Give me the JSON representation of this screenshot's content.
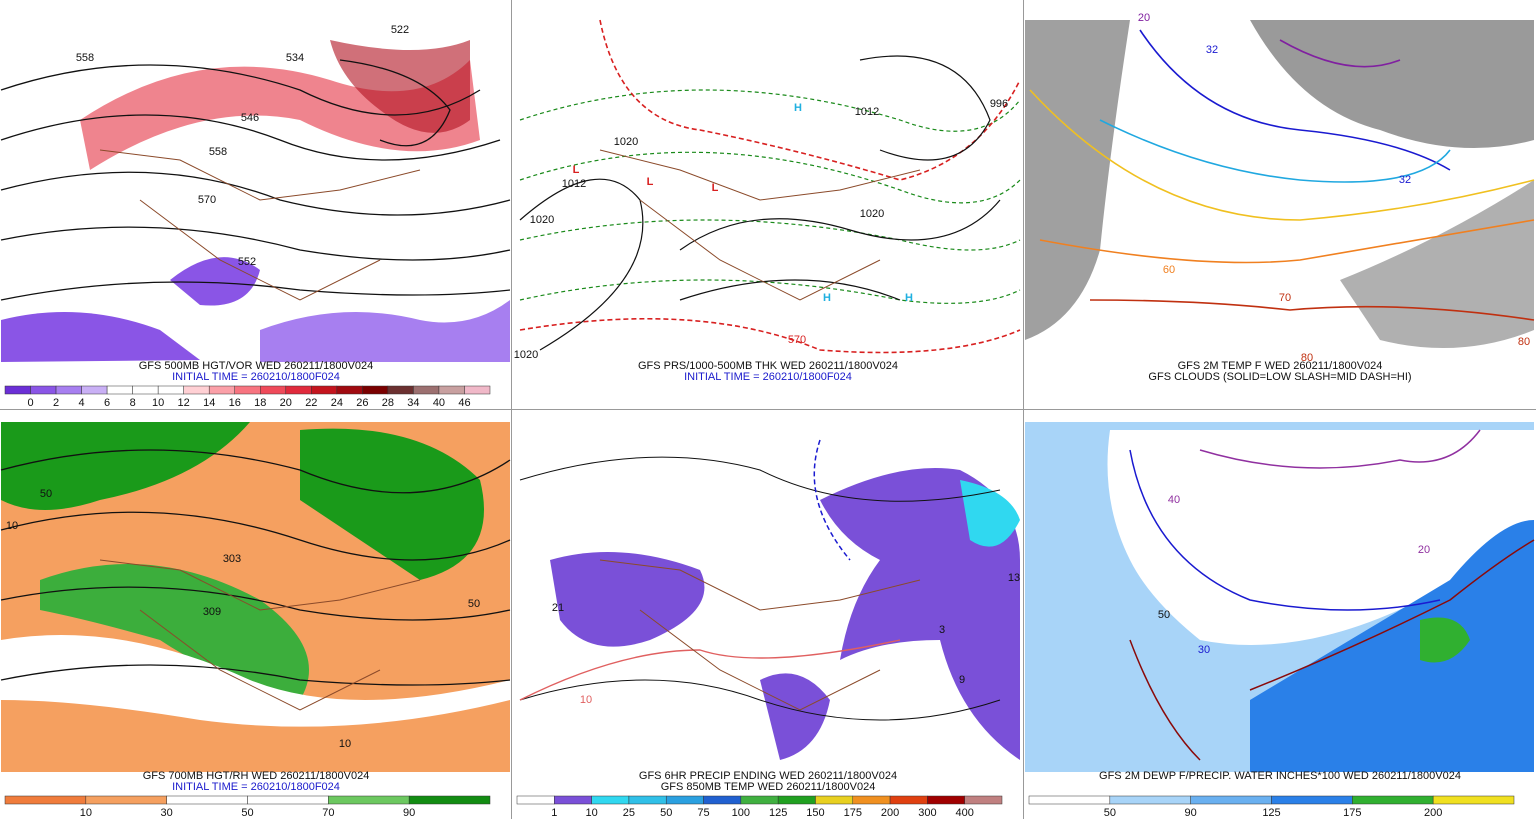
{
  "panels": [
    {
      "caption": [
        "GFS 500MB HGT/VOR WED 260211/1800V024",
        "INITIAL TIME = 260210/1800F024"
      ],
      "colorbar": {
        "labels": [
          "0",
          "2",
          "4",
          "6",
          "8",
          "10",
          "12",
          "14",
          "16",
          "18",
          "20",
          "22",
          "24",
          "26",
          "28",
          "34",
          "40",
          "46"
        ],
        "colors": [
          "#6b2fd6",
          "#8a55e6",
          "#a77ff0",
          "#c9b0f5",
          "#ffffff",
          "#ffffff",
          "#ffffff",
          "#ffd0d4",
          "#fba0a8",
          "#f77480",
          "#ef4a5a",
          "#e02a3c",
          "#c4141e",
          "#a00a10",
          "#7a0000",
          "#6b3030",
          "#9c7070",
          "#c8a0a0",
          "#f0b8c8"
        ]
      },
      "map_labels": [
        "558",
        "534",
        "546",
        "558",
        "570",
        "552",
        "522"
      ]
    },
    {
      "caption": [
        "GFS PRS/1000-500MB THK WED 260211/1800V024",
        "INITIAL TIME = 260210/1800F024"
      ],
      "map_labels": [
        "1020",
        "1012",
        "1020",
        "1012",
        "1020",
        "1020",
        "570",
        "996",
        "L",
        "L",
        "L",
        "H",
        "H",
        "H"
      ]
    },
    {
      "caption": [
        "GFS 2M TEMP F WED 260211/1800V024",
        "GFS CLOUDS (SOLID=LOW SLASH=MID DASH=HI)"
      ],
      "map_labels": [
        "32",
        "32",
        "60",
        "70",
        "80",
        "80",
        "20"
      ]
    },
    {
      "caption": [
        "GFS 700MB HGT/RH WED 260211/1800V024",
        "INITIAL TIME = 260210/1800F024"
      ],
      "colorbar": {
        "labels": [
          "10",
          "30",
          "50",
          "70",
          "90"
        ],
        "colors": [
          "#f07c3c",
          "#f5a060",
          "#ffffff",
          "#ffffff",
          "#6cc860",
          "#128c12"
        ]
      },
      "map_labels": [
        "50",
        "10",
        "309",
        "303",
        "50",
        "10"
      ]
    },
    {
      "caption": [
        "GFS 6HR PRECIP ENDING WED 260211/1800V024",
        "GFS 850MB TEMP WED 260211/1800V024"
      ],
      "colorbar": {
        "labels": [
          "1",
          "10",
          "25",
          "50",
          "75",
          "100",
          "125",
          "150",
          "175",
          "200",
          "300",
          "400"
        ],
        "colors": [
          "#ffffff",
          "#7a50d8",
          "#30d8f0",
          "#30c0e8",
          "#2aa0e0",
          "#2060d0",
          "#40b040",
          "#20a020",
          "#e8d020",
          "#f09020",
          "#e04010",
          "#a00000",
          "#c08080"
        ]
      },
      "map_labels": [
        "21",
        "13",
        "3",
        "9",
        "10"
      ]
    },
    {
      "caption": [
        "GFS 2M DEWP F/PRECIP. WATER INCHES*100 WED 260211/1800V024"
      ],
      "colorbar": {
        "labels": [
          "50",
          "90",
          "125",
          "175",
          "200"
        ],
        "colors": [
          "#ffffff",
          "#a8d4f8",
          "#6ab0f0",
          "#2a80e8",
          "#30b030",
          "#f0e020"
        ]
      },
      "map_labels": [
        "30",
        "40",
        "50",
        "20"
      ]
    }
  ]
}
